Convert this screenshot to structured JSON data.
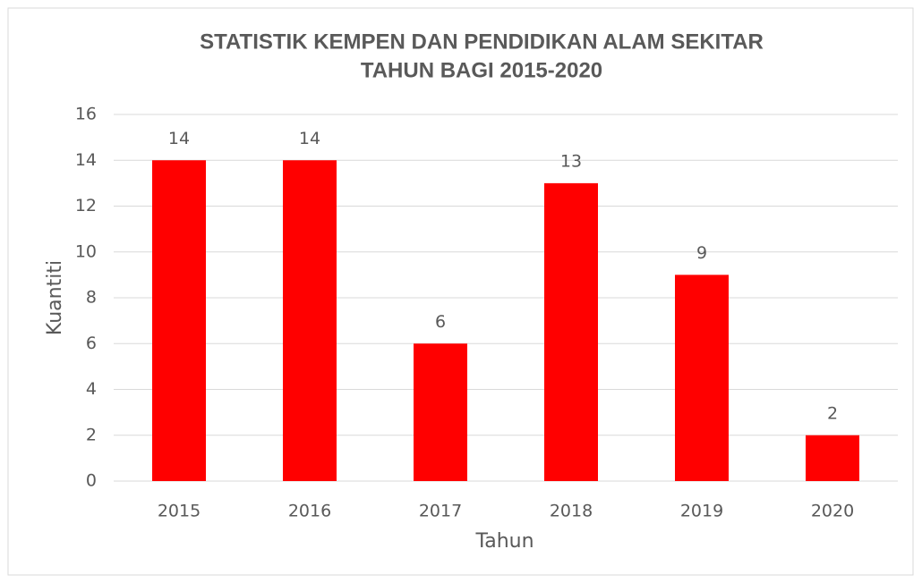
{
  "chart_data": {
    "type": "bar",
    "title": [
      "STATISTIK KEMPEN DAN PENDIDIKAN ALAM SEKITAR",
      "TAHUN BAGI 2015-2020"
    ],
    "x_label": "Tahun",
    "y_label": "Kuantiti",
    "categories": [
      "2015",
      "2016",
      "2017",
      "2018",
      "2019",
      "2020"
    ],
    "values": [
      14,
      14,
      6,
      13,
      9,
      2
    ],
    "color": "#ff0000",
    "ylim": [
      0,
      16
    ],
    "yticks": [
      0,
      2,
      4,
      6,
      8,
      10,
      12,
      14,
      16
    ],
    "grid": true
  }
}
